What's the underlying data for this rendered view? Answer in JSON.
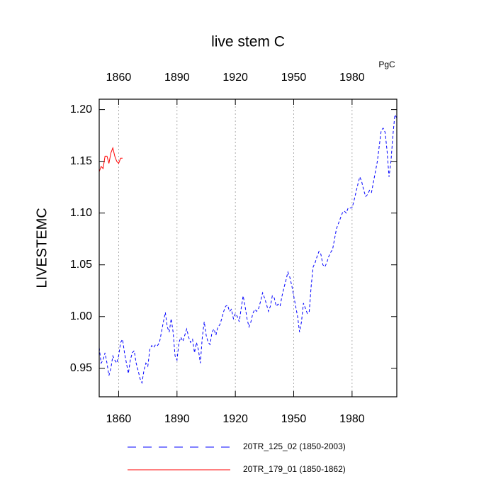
{
  "chart_data": {
    "type": "line",
    "title": "live stem C",
    "units_label": "PgC",
    "ylabel": "LIVESTEMC",
    "xlim": [
      1850,
      2003
    ],
    "ylim": [
      0.9225,
      1.21
    ],
    "xticks": [
      1860,
      1890,
      1920,
      1950,
      1980
    ],
    "yticks": [
      {
        "value": 0.95,
        "label": "0.95"
      },
      {
        "value": 1.0,
        "label": "1.00"
      },
      {
        "value": 1.05,
        "label": "1.05"
      },
      {
        "value": 1.1,
        "label": "1.10"
      },
      {
        "value": 1.15,
        "label": "1.15"
      },
      {
        "value": 1.2,
        "label": "1.20"
      }
    ],
    "top_tick_color": "blue",
    "bottom_tick_color": "red",
    "grid": "x",
    "series": [
      {
        "name": "20TR_125_02 (1850-2003)",
        "color": "blue",
        "dashed": true,
        "x": [
          1850,
          1851,
          1852,
          1853,
          1854,
          1855,
          1856,
          1857,
          1858,
          1859,
          1860,
          1861,
          1862,
          1863,
          1864,
          1865,
          1866,
          1867,
          1868,
          1869,
          1870,
          1871,
          1872,
          1873,
          1874,
          1875,
          1876,
          1877,
          1878,
          1879,
          1880,
          1881,
          1882,
          1883,
          1884,
          1885,
          1886,
          1887,
          1888,
          1889,
          1890,
          1891,
          1892,
          1893,
          1894,
          1895,
          1896,
          1897,
          1898,
          1899,
          1900,
          1901,
          1902,
          1903,
          1904,
          1905,
          1906,
          1907,
          1908,
          1909,
          1910,
          1911,
          1912,
          1913,
          1914,
          1915,
          1916,
          1917,
          1918,
          1919,
          1920,
          1921,
          1922,
          1923,
          1924,
          1925,
          1926,
          1927,
          1928,
          1929,
          1930,
          1931,
          1932,
          1933,
          1934,
          1935,
          1936,
          1937,
          1938,
          1939,
          1940,
          1941,
          1942,
          1943,
          1944,
          1945,
          1946,
          1947,
          1948,
          1949,
          1950,
          1951,
          1952,
          1953,
          1954,
          1955,
          1956,
          1957,
          1958,
          1959,
          1960,
          1961,
          1962,
          1963,
          1964,
          1965,
          1966,
          1967,
          1968,
          1969,
          1970,
          1971,
          1972,
          1973,
          1974,
          1975,
          1976,
          1977,
          1978,
          1979,
          1980,
          1981,
          1982,
          1983,
          1984,
          1985,
          1986,
          1987,
          1988,
          1989,
          1990,
          1991,
          1992,
          1993,
          1994,
          1995,
          1996,
          1997,
          1998,
          1999,
          2000,
          2001,
          2002,
          2003
        ],
        "values": [
          0.97,
          0.955,
          0.958,
          0.965,
          0.955,
          0.943,
          0.95,
          0.962,
          0.958,
          0.955,
          0.962,
          0.975,
          0.978,
          0.965,
          0.955,
          0.945,
          0.958,
          0.965,
          0.967,
          0.955,
          0.948,
          0.94,
          0.936,
          0.948,
          0.955,
          0.952,
          0.968,
          0.972,
          0.97,
          0.973,
          0.972,
          0.975,
          0.985,
          0.995,
          1.004,
          0.99,
          0.985,
          0.998,
          0.985,
          0.962,
          0.958,
          0.975,
          0.98,
          0.976,
          0.982,
          0.988,
          0.98,
          0.975,
          0.978,
          0.965,
          0.975,
          0.968,
          0.955,
          0.98,
          0.995,
          0.982,
          0.975,
          0.973,
          0.985,
          0.988,
          0.982,
          0.99,
          0.992,
          0.998,
          1.005,
          1.01,
          1.011,
          1.005,
          1.007,
          0.998,
          1.003,
          1.0,
          0.995,
          1.008,
          1.02,
          1.01,
          0.998,
          0.99,
          0.995,
          1.003,
          1.007,
          1.005,
          1.008,
          1.015,
          1.023,
          1.018,
          1.012,
          1.005,
          1.01,
          1.02,
          1.018,
          1.01,
          1.012,
          1.01,
          1.02,
          1.028,
          1.035,
          1.043,
          1.038,
          1.03,
          1.02,
          1.01,
          1.0,
          0.985,
          0.995,
          1.013,
          1.008,
          1.003,
          1.005,
          1.03,
          1.048,
          1.052,
          1.058,
          1.063,
          1.06,
          1.05,
          1.048,
          1.052,
          1.058,
          1.062,
          1.065,
          1.075,
          1.085,
          1.09,
          1.095,
          1.1,
          1.102,
          1.1,
          1.105,
          1.105,
          1.105,
          1.112,
          1.12,
          1.128,
          1.135,
          1.13,
          1.122,
          1.116,
          1.118,
          1.122,
          1.12,
          1.13,
          1.14,
          1.15,
          1.165,
          1.18,
          1.182,
          1.178,
          1.16,
          1.135,
          1.15,
          1.175,
          1.195,
          1.192
        ]
      },
      {
        "name": "20TR_179_01 (1850-1862)",
        "color": "red",
        "dashed": false,
        "x": [
          1850,
          1851,
          1852,
          1853,
          1854,
          1855,
          1856,
          1857,
          1858,
          1859,
          1860,
          1861,
          1862
        ],
        "values": [
          1.14,
          1.145,
          1.143,
          1.155,
          1.155,
          1.148,
          1.158,
          1.163,
          1.155,
          1.15,
          1.148,
          1.153,
          1.153
        ]
      }
    ]
  }
}
